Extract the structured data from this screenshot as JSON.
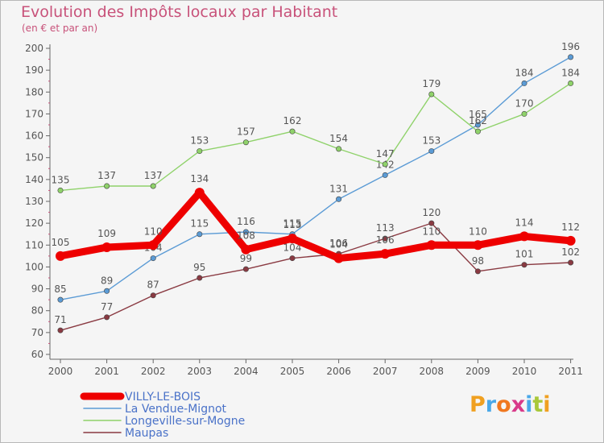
{
  "title": "Evolution des Impôts locaux par Habitant",
  "subtitle": "(en € et par an)",
  "chart_data": {
    "type": "line",
    "title": "Evolution des Impôts locaux par Habitant",
    "subtitle": "(en € et par an)",
    "xlabel": "",
    "ylabel": "",
    "x": [
      "2000",
      "2001",
      "2002",
      "2003",
      "2004",
      "2005",
      "2006",
      "2007",
      "2008",
      "2009",
      "2010",
      "2011"
    ],
    "ylim": [
      60,
      200
    ],
    "yticks": [
      "60",
      "70",
      "80",
      "90",
      "100",
      "110",
      "120",
      "130",
      "140",
      "150",
      "160",
      "170",
      "180",
      "190",
      "200"
    ],
    "grid": false,
    "legend_position": "bottom-left",
    "series": [
      {
        "name": "VILLY-LE-BOIS",
        "color": "#ee0000",
        "width": "thick",
        "values": [
          105,
          109,
          110,
          134,
          108,
          113,
          104,
          106,
          110,
          110,
          114,
          112
        ],
        "labels": [
          "105",
          "109",
          "110",
          "134",
          "108",
          "113",
          "104",
          "106",
          "110",
          "110",
          "114",
          "112"
        ]
      },
      {
        "name": "La Vendue-Mignot",
        "color": "#5b9bd5",
        "width": "thin",
        "values": [
          85,
          89,
          104,
          115,
          116,
          115,
          131,
          142,
          153,
          165,
          184,
          196
        ],
        "labels": [
          "85",
          "89",
          "104",
          "115",
          "116",
          "115",
          "131",
          "142",
          "153",
          "165",
          "184",
          "196"
        ]
      },
      {
        "name": "Longeville-sur-Mogne",
        "color": "#8fd26a",
        "width": "thin",
        "values": [
          135,
          137,
          137,
          153,
          157,
          162,
          154,
          147,
          179,
          162,
          170,
          184
        ],
        "labels": [
          "135",
          "137",
          "137",
          "153",
          "157",
          "162",
          "154",
          "147",
          "179",
          "162",
          "170",
          "184"
        ]
      },
      {
        "name": "Maupas",
        "color": "#8a3a42",
        "width": "thin",
        "values": [
          71,
          77,
          87,
          95,
          99,
          104,
          106,
          113,
          120,
          98,
          101,
          102
        ],
        "labels": [
          "71",
          "77",
          "87",
          "95",
          "99",
          "104",
          "106",
          "113",
          "120",
          "98",
          "101",
          "102"
        ]
      }
    ]
  },
  "logo": {
    "letters": [
      "P",
      "r",
      "o",
      "x",
      "i",
      "t",
      "i"
    ],
    "colors": [
      "#f0a020",
      "#4aa8e8",
      "#f07820",
      "#d83a8a",
      "#4aa8e8",
      "#a8c83a",
      "#f0a020"
    ]
  }
}
